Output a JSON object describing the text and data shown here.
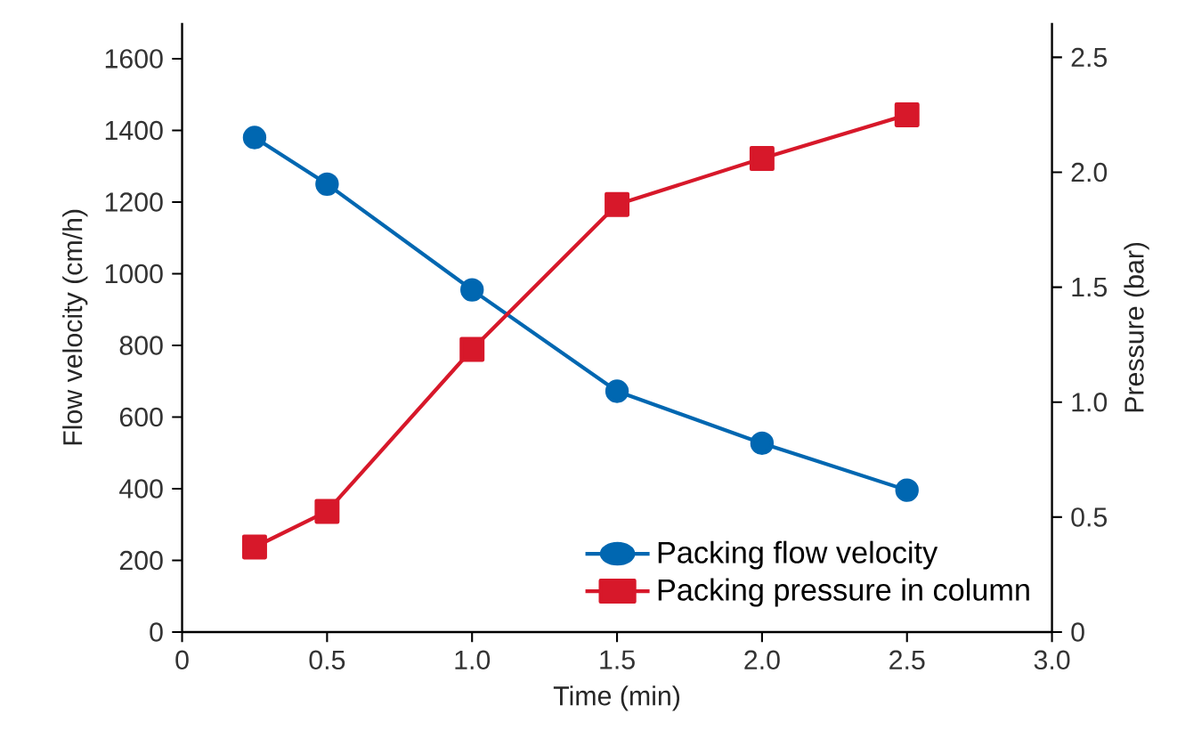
{
  "chart_data": {
    "type": "line",
    "xlabel": "Time (min)",
    "ylabel": "Flow velocity (cm/h)",
    "y2label": "Pressure (bar)",
    "xlim": [
      0,
      3.0
    ],
    "xticks": [
      0,
      0.5,
      {
        "value": 1,
        "label": "1.0"
      },
      1.5,
      {
        "value": 2,
        "label": "2.0"
      },
      2.5,
      {
        "value": 3,
        "label": "3.0"
      }
    ],
    "ylim": [
      0,
      1700
    ],
    "yticks": [
      0,
      200,
      400,
      600,
      800,
      1000,
      1200,
      1400,
      1600
    ],
    "y2lim": [
      0,
      2.65
    ],
    "y2ticks": [
      0,
      0.5,
      {
        "value": 1,
        "label": "1.0"
      },
      1.5,
      {
        "value": 2,
        "label": "2.0"
      },
      2.5
    ],
    "x": [
      0.25,
      0.5,
      1.0,
      1.5,
      2.0,
      2.5
    ],
    "series": [
      {
        "name": "Packing flow velocity",
        "color": "#0067b1",
        "marker": "circle",
        "values": [
          1380,
          1250,
          955,
          672,
          527,
          396
        ]
      },
      {
        "name": "Packing pressure in column",
        "color": "#d7182a",
        "marker": "square",
        "axis": "y2",
        "values": [
          0.37,
          0.525,
          1.23,
          1.86,
          2.06,
          2.25
        ]
      }
    ],
    "legend": "bottom right",
    "grid": false,
    "line_style": "solid"
  }
}
